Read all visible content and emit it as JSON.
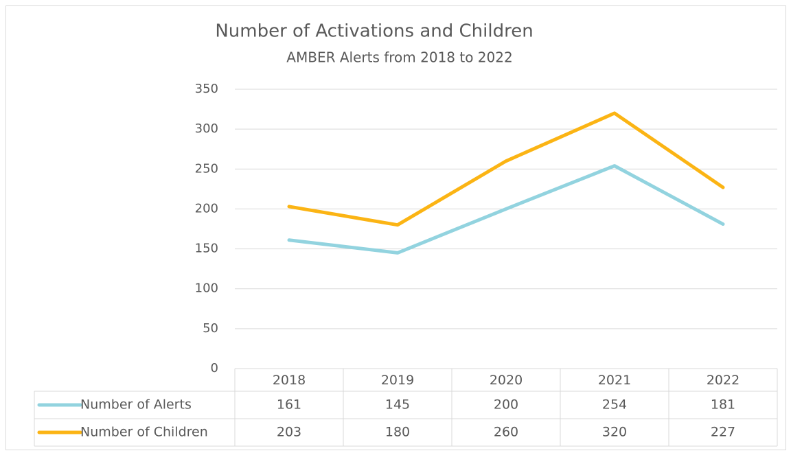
{
  "chart_data": {
    "type": "line",
    "title": "Number of Activations and Children",
    "subtitle": "AMBER Alerts from 2018 to 2022",
    "categories": [
      "2018",
      "2019",
      "2020",
      "2021",
      "2022"
    ],
    "series": [
      {
        "name": "Number of Alerts",
        "color": "#92d3df",
        "values": [
          161,
          145,
          200,
          254,
          181
        ]
      },
      {
        "name": "Number of Children",
        "color": "#fbb414",
        "values": [
          203,
          180,
          260,
          320,
          227
        ]
      }
    ],
    "ylim": [
      0,
      350
    ],
    "yticks": [
      0,
      50,
      100,
      150,
      200,
      250,
      300,
      350
    ],
    "grid": true
  }
}
